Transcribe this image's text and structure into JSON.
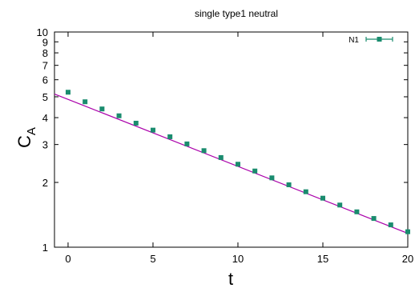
{
  "chart_data": {
    "type": "scatter",
    "title": "single type1 neutral",
    "xlabel": "t",
    "ylabel_main": "C",
    "ylabel_sub": "A",
    "xlim": [
      -0.8,
      20
    ],
    "ylim": [
      1,
      10
    ],
    "yscale": "log",
    "grid": false,
    "legend_position": "top-right",
    "x_ticks": [
      0,
      5,
      10,
      15,
      20
    ],
    "x_tick_labels": [
      "0",
      "5",
      "10",
      "15",
      "20"
    ],
    "y_ticks": [
      1,
      2,
      3,
      4,
      5,
      6,
      7,
      8,
      9,
      10
    ],
    "y_tick_labels": [
      "1",
      "2",
      "3",
      "4",
      "5",
      "6",
      "7",
      "8",
      "9",
      "10"
    ],
    "series": [
      {
        "name": "N1",
        "color": "#1a8c6e",
        "marker": "square",
        "errorbars": true,
        "x": [
          0,
          1,
          2,
          3,
          4,
          5,
          6,
          7,
          8,
          9,
          10,
          11,
          12,
          13,
          14,
          15,
          16,
          17,
          18,
          19,
          20
        ],
        "y": [
          5.25,
          4.74,
          4.39,
          4.08,
          3.77,
          3.5,
          3.26,
          3.02,
          2.81,
          2.61,
          2.43,
          2.26,
          2.1,
          1.95,
          1.81,
          1.69,
          1.57,
          1.46,
          1.36,
          1.27,
          1.18
        ]
      }
    ],
    "fit_line": {
      "color": "#aa00aa",
      "x": [
        -0.8,
        20
      ],
      "y": [
        5.15,
        1.16
      ]
    }
  }
}
